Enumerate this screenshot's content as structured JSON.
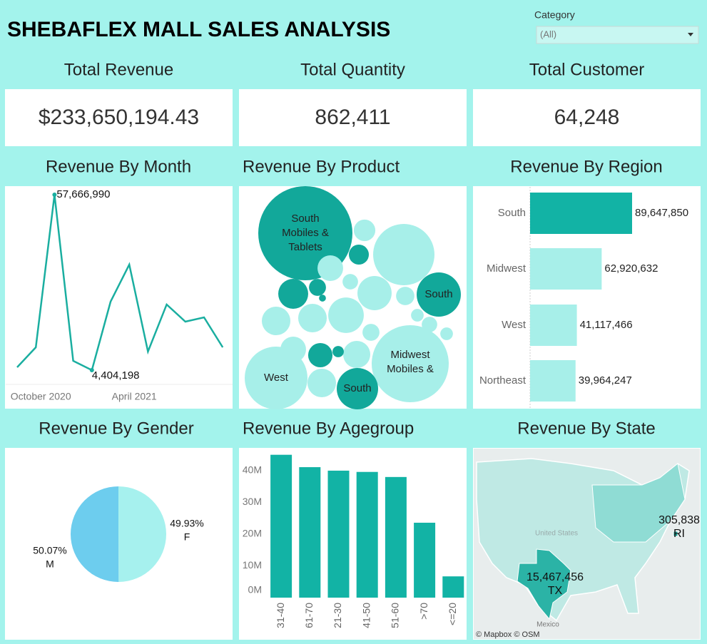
{
  "header": {
    "title": "SHEBAFLEX MALL SALES ANALYSIS",
    "filter": {
      "label": "Category",
      "value": "(All)"
    }
  },
  "kpis": [
    {
      "title": "Total Revenue",
      "value": "$233,650,194.43"
    },
    {
      "title": "Total Quantity",
      "value": "862,411"
    },
    {
      "title": "Total Customer",
      "value": "64,248"
    }
  ],
  "chart_data": [
    {
      "type": "line",
      "title": "Revenue By Month",
      "categories": [
        null,
        "October 2020",
        null,
        null,
        null,
        null,
        "April 2021",
        null,
        null,
        null,
        null,
        null
      ],
      "values": [
        5270000,
        11330000,
        57666990,
        7220000,
        4404198,
        25190000,
        36450000,
        10030000,
        24330000,
        19130000,
        20430000,
        11330000
      ],
      "value_labels": [
        null,
        null,
        "57,666,990",
        null,
        "4,404,198",
        null,
        null,
        null,
        null,
        null,
        null,
        null
      ],
      "color": "#1aaea0"
    },
    {
      "type": "bubble",
      "title": "Revenue By Product",
      "labels": [
        "South Mobiles & Tablets",
        null,
        "South",
        "Midwest Mobiles &",
        "West",
        "South",
        null,
        null,
        null,
        null,
        null,
        null,
        null,
        null,
        null,
        null,
        null,
        null,
        null,
        null,
        null,
        null,
        null,
        null,
        null,
        null,
        null
      ],
      "values": [
        55400000,
        23500000,
        12200000,
        37100000,
        24600000,
        10700000,
        2900000,
        2500000,
        5600000,
        1800000,
        7900000,
        7300000,
        5100000,
        5100000,
        3700000,
        5100000,
        4600000,
        4100000,
        1500000,
        2100000,
        1800000,
        4100000,
        800000,
        1000000,
        1000000,
        1500000,
        300000
      ],
      "colors": [
        "#12a89a",
        "#a7efe9",
        "#12a89a",
        "#a7efe9",
        "#a7efe9",
        "#12a89a",
        "#a7efe9",
        "#12a89a",
        "#12a89a",
        "#12a89a",
        "#a7efe9",
        "#a7efe9",
        "#a7efe9",
        "#a7efe9",
        "#12a89a",
        "#a7efe9",
        "#a7efe9",
        "#a7efe9",
        "#a7efe9",
        "#a7efe9",
        "#a7efe9",
        "#a7efe9",
        "#12a89a",
        "#a7efe9",
        "#a7efe9",
        "#a7efe9",
        "#12a89a"
      ]
    },
    {
      "type": "hbar",
      "title": "Revenue By Region",
      "categories": [
        "South",
        "Midwest",
        "West",
        "Northeast"
      ],
      "values": [
        89647850,
        62920632,
        41117466,
        39964247
      ],
      "value_labels": [
        "89,647,850",
        "62,920,632",
        "41,117,466",
        "39,964,247"
      ],
      "colors": [
        "#12b3a5",
        "#a7efe9",
        "#a7efe9",
        "#a7efe9"
      ]
    },
    {
      "type": "pie",
      "title": "Revenue By Gender",
      "categories": [
        "M",
        "F"
      ],
      "values": [
        50.07,
        49.93
      ],
      "value_labels": [
        "50.07%",
        "49.93%"
      ],
      "colors": [
        "#6dcdee",
        "#a6f1ee"
      ]
    },
    {
      "type": "bar",
      "title": "Revenue By Agegroup",
      "categories": [
        "31-40",
        "61-70",
        "21-30",
        "41-50",
        "51-60",
        ">70",
        "<=20"
      ],
      "values": [
        45000000,
        41100000,
        40000000,
        39600000,
        38000000,
        23600000,
        6700000
      ],
      "color": "#12b3a5",
      "ylim": [
        0,
        46500000
      ],
      "yticks": [
        {
          "value": 0,
          "label": "0M"
        },
        {
          "value": 10000000,
          "label": "10M"
        },
        {
          "value": 20000000,
          "label": "20M"
        },
        {
          "value": 30000000,
          "label": "30M"
        },
        {
          "value": 40000000,
          "label": "40M"
        }
      ]
    },
    {
      "type": "map",
      "title": "Revenue By State",
      "states": [
        "TX",
        "RI"
      ],
      "values": [
        15467456,
        305838
      ],
      "value_labels": [
        "15,467,456",
        "305,838"
      ],
      "colors": [
        "#2bb3a6",
        "#1a9e92"
      ],
      "country_labels": [
        "United States",
        "Mexico"
      ],
      "attribution": "© Mapbox © OSM"
    }
  ]
}
